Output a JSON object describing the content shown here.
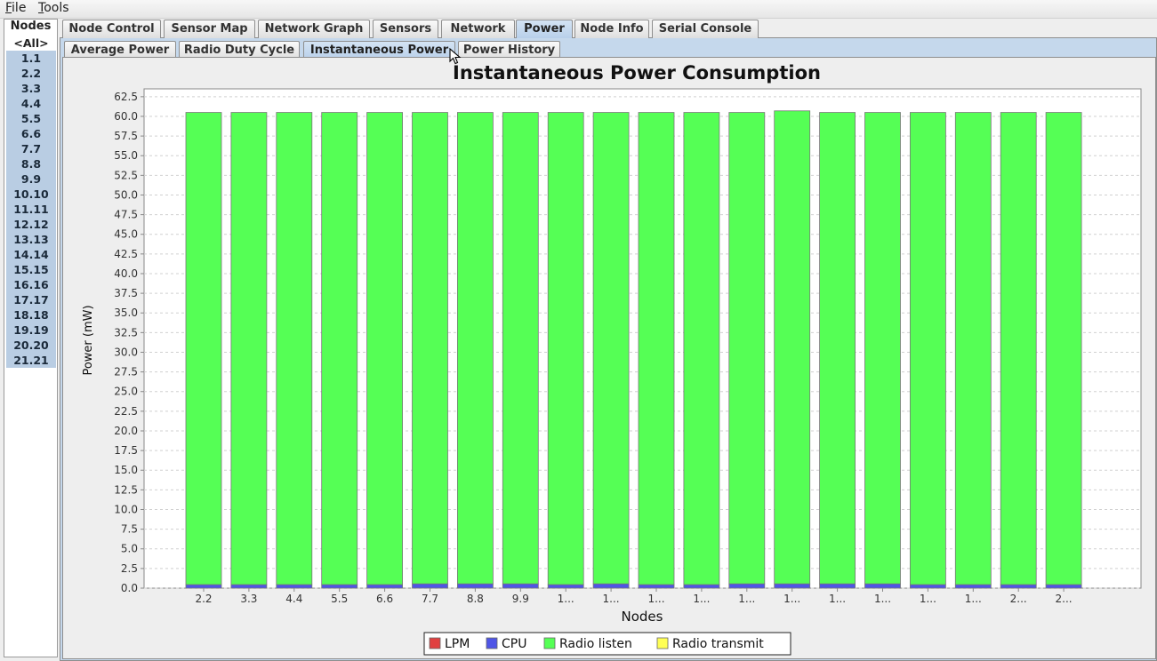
{
  "menu": [
    {
      "label": "File",
      "ul": "F",
      "rest": "ile"
    },
    {
      "label": "Tools",
      "ul": "T",
      "rest": "ools"
    }
  ],
  "nodes_panel": {
    "title": "Nodes",
    "items": [
      "<All>",
      "1.1",
      "2.2",
      "3.3",
      "4.4",
      "5.5",
      "6.6",
      "7.7",
      "8.8",
      "9.9",
      "10.10",
      "11.11",
      "12.12",
      "13.13",
      "14.14",
      "15.15",
      "16.16",
      "17.17",
      "18.18",
      "19.19",
      "20.20",
      "21.21"
    ]
  },
  "main_tabs": [
    "Node Control",
    "Sensor Map",
    "Network Graph",
    "Sensors",
    "Network",
    "Power",
    "Node Info",
    "Serial Console"
  ],
  "main_active": "Power",
  "sub_tabs": [
    "Average Power",
    "Radio Duty Cycle",
    "Instantaneous Power",
    "Power History"
  ],
  "sub_active": "Instantaneous Power",
  "colors": {
    "lpm": "#e04040",
    "cpu": "#4f55e6",
    "radio_listen": "#55ff55",
    "radio_transmit": "#ffff55"
  },
  "chart_data": {
    "type": "bar",
    "stacked": true,
    "title": "Instantaneous Power Consumption",
    "xlabel": "Nodes",
    "ylabel": "Power (mW)",
    "ylim": [
      0,
      63.5
    ],
    "yticks": [
      "0.0",
      "2.5",
      "5.0",
      "7.5",
      "10.0",
      "12.5",
      "15.0",
      "17.5",
      "20.0",
      "22.5",
      "25.0",
      "27.5",
      "30.0",
      "32.5",
      "35.0",
      "37.5",
      "40.0",
      "42.5",
      "45.0",
      "47.5",
      "50.0",
      "52.5",
      "55.0",
      "57.5",
      "60.0",
      "62.5"
    ],
    "grid": true,
    "legend_position": "bottom",
    "categories": [
      "2.2",
      "3.3",
      "4.4",
      "5.5",
      "6.6",
      "7.7",
      "8.8",
      "9.9",
      "1...",
      "1...",
      "1...",
      "1...",
      "1...",
      "1...",
      "1...",
      "1...",
      "1...",
      "1...",
      "2...",
      "2..."
    ],
    "series": [
      {
        "name": "LPM",
        "values": [
          0,
          0,
          0,
          0,
          0,
          0,
          0,
          0,
          0,
          0,
          0,
          0,
          0,
          0,
          0,
          0,
          0,
          0,
          0,
          0
        ]
      },
      {
        "name": "CPU",
        "values": [
          0.45,
          0.45,
          0.45,
          0.45,
          0.45,
          0.55,
          0.55,
          0.55,
          0.45,
          0.55,
          0.45,
          0.45,
          0.55,
          0.55,
          0.55,
          0.55,
          0.45,
          0.45,
          0.45,
          0.45
        ]
      },
      {
        "name": "Radio listen",
        "values": [
          60.05,
          60.05,
          60.05,
          60.05,
          60.05,
          59.95,
          59.95,
          59.95,
          60.05,
          59.95,
          60.05,
          60.05,
          59.95,
          60.15,
          59.95,
          59.95,
          60.05,
          60.05,
          60.05,
          60.05
        ]
      },
      {
        "name": "Radio transmit",
        "values": [
          0,
          0,
          0,
          0,
          0,
          0,
          0,
          0,
          0,
          0,
          0,
          0,
          0,
          0,
          0,
          0,
          0,
          0,
          0,
          0
        ]
      }
    ]
  }
}
